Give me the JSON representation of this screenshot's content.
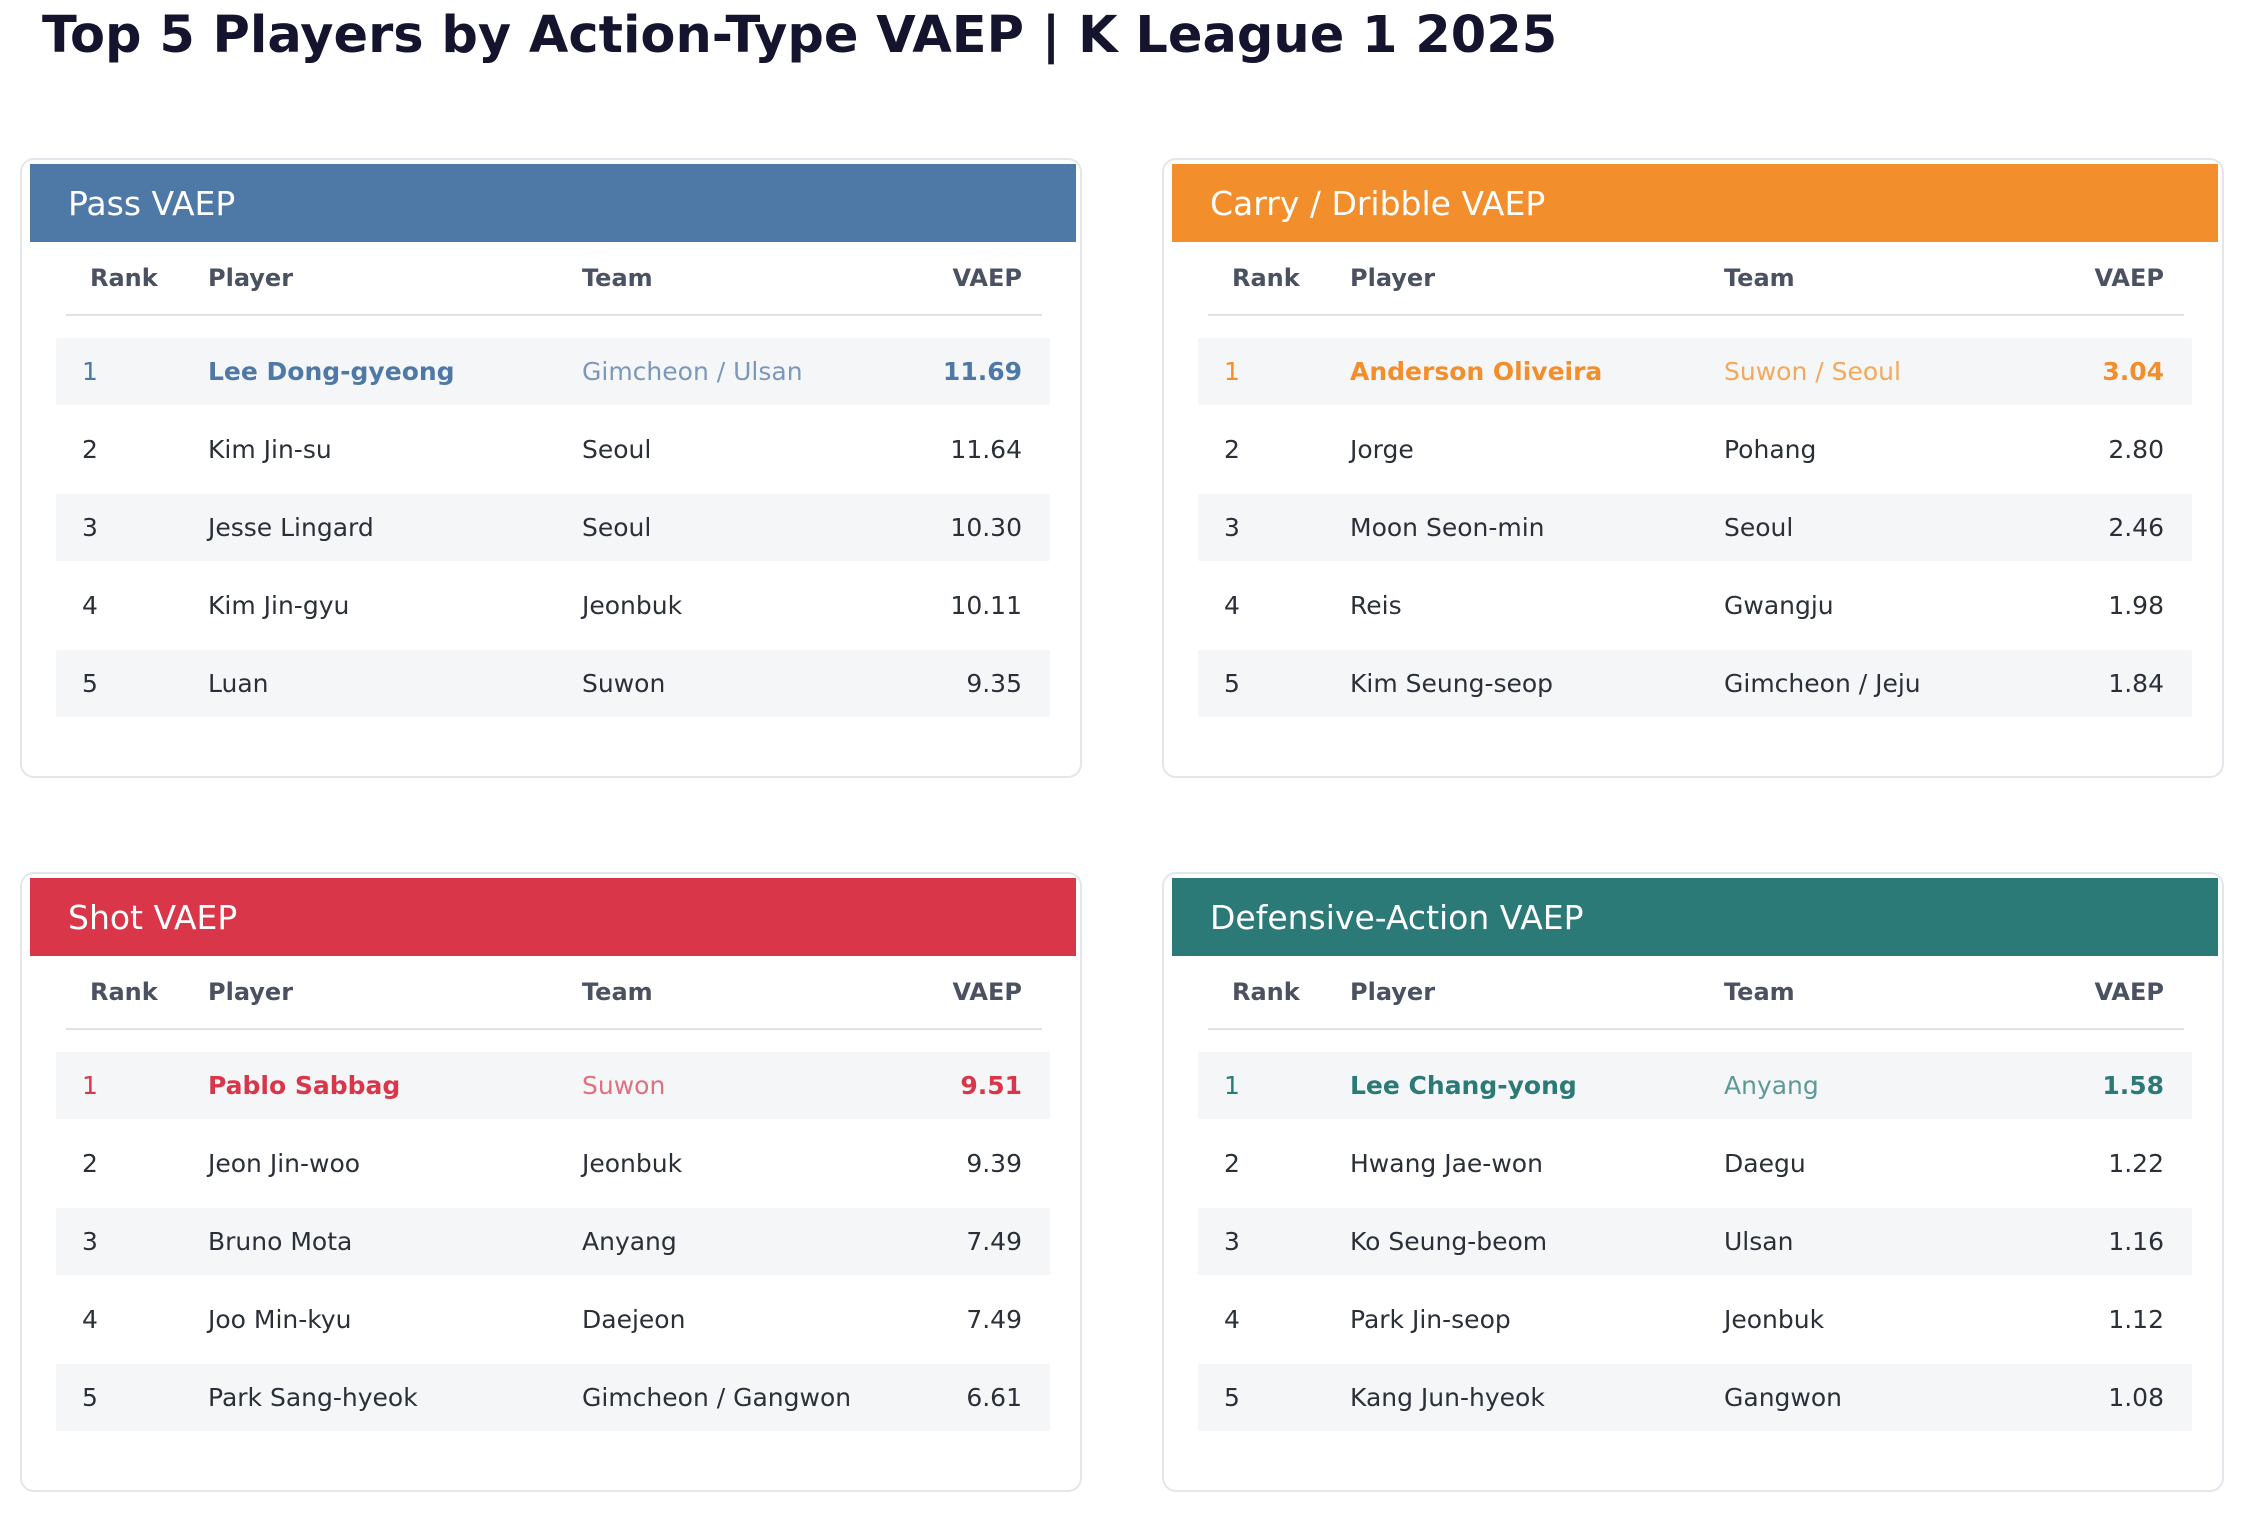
{
  "title": "Top 5 Players by Action-Type VAEP | K League 1 2025",
  "columns": {
    "rank": "Rank",
    "player": "Player",
    "team": "Team",
    "vaep": "VAEP"
  },
  "chart_data": {
    "type": "table",
    "tables": [
      {
        "title": "Pass VAEP",
        "color": "#4e79a7",
        "rows": [
          {
            "rank": "1",
            "player": "Lee Dong-gyeong",
            "team": "Gimcheon / Ulsan",
            "vaep": "11.69"
          },
          {
            "rank": "2",
            "player": "Kim Jin-su",
            "team": "Seoul",
            "vaep": "11.64"
          },
          {
            "rank": "3",
            "player": "Jesse Lingard",
            "team": "Seoul",
            "vaep": "10.30"
          },
          {
            "rank": "4",
            "player": "Kim Jin-gyu",
            "team": "Jeonbuk",
            "vaep": "10.11"
          },
          {
            "rank": "5",
            "player": "Luan",
            "team": "Suwon",
            "vaep": "9.35"
          }
        ]
      },
      {
        "title": "Carry / Dribble VAEP",
        "color": "#f28e2b",
        "rows": [
          {
            "rank": "1",
            "player": "Anderson Oliveira",
            "team": "Suwon / Seoul",
            "vaep": "3.04"
          },
          {
            "rank": "2",
            "player": "Jorge",
            "team": "Pohang",
            "vaep": "2.80"
          },
          {
            "rank": "3",
            "player": "Moon Seon-min",
            "team": "Seoul",
            "vaep": "2.46"
          },
          {
            "rank": "4",
            "player": "Reis",
            "team": "Gwangju",
            "vaep": "1.98"
          },
          {
            "rank": "5",
            "player": "Kim Seung-seop",
            "team": "Gimcheon / Jeju",
            "vaep": "1.84"
          }
        ]
      },
      {
        "title": "Shot VAEP",
        "color": "#d9364a",
        "rows": [
          {
            "rank": "1",
            "player": "Pablo Sabbag",
            "team": "Suwon",
            "vaep": "9.51"
          },
          {
            "rank": "2",
            "player": "Jeon Jin-woo",
            "team": "Jeonbuk",
            "vaep": "9.39"
          },
          {
            "rank": "3",
            "player": "Bruno Mota",
            "team": "Anyang",
            "vaep": "7.49"
          },
          {
            "rank": "4",
            "player": "Joo Min-kyu",
            "team": "Daejeon",
            "vaep": "7.49"
          },
          {
            "rank": "5",
            "player": "Park Sang-hyeok",
            "team": "Gimcheon / Gangwon",
            "vaep": "6.61"
          }
        ]
      },
      {
        "title": "Defensive-Action VAEP",
        "color": "#2b7a78",
        "rows": [
          {
            "rank": "1",
            "player": "Lee Chang-yong",
            "team": "Anyang",
            "vaep": "1.58"
          },
          {
            "rank": "2",
            "player": "Hwang Jae-won",
            "team": "Daegu",
            "vaep": "1.22"
          },
          {
            "rank": "3",
            "player": "Ko Seung-beom",
            "team": "Ulsan",
            "vaep": "1.16"
          },
          {
            "rank": "4",
            "player": "Park Jin-seop",
            "team": "Jeonbuk",
            "vaep": "1.12"
          },
          {
            "rank": "5",
            "player": "Kang Jun-hyeok",
            "team": "Gangwon",
            "vaep": "1.08"
          }
        ]
      }
    ]
  }
}
